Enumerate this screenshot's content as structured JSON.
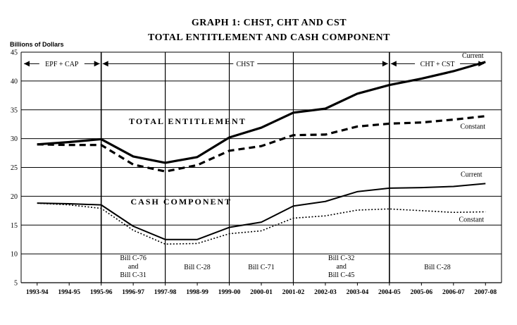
{
  "chart_data": {
    "type": "line",
    "title_line1": "GRAPH 1: CHST, CHT AND CST",
    "title_line2": "TOTAL ENTITLEMENT AND CASH COMPONENT",
    "ylabel": "Billions of Dollars",
    "ylim": [
      5,
      45
    ],
    "yticks": [
      5,
      10,
      15,
      20,
      25,
      30,
      35,
      40,
      45
    ],
    "categories": [
      "1993-94",
      "1994-95",
      "1995-96",
      "1996-97",
      "1997-98",
      "1998-99",
      "1999-00",
      "2000-01",
      "2001-02",
      "2002-03",
      "2003-04",
      "2004-05",
      "2005-06",
      "2006-07",
      "2007-08"
    ],
    "series": [
      {
        "name": "Current",
        "group": "TOTAL ENTITLEMENT",
        "style": "thick-solid",
        "values": [
          29.0,
          29.4,
          29.9,
          26.9,
          25.8,
          26.8,
          30.2,
          31.9,
          34.5,
          35.2,
          37.8,
          39.3,
          40.4,
          41.7,
          43.3
        ]
      },
      {
        "name": "Constant",
        "group": "TOTAL ENTITLEMENT",
        "style": "thick-dashed",
        "values": [
          29.0,
          28.9,
          28.9,
          25.5,
          24.3,
          25.4,
          27.9,
          28.7,
          30.6,
          30.7,
          32.1,
          32.6,
          32.8,
          33.3,
          33.9
        ]
      },
      {
        "name": "Current",
        "group": "CASH COMPONENT",
        "style": "solid",
        "values": [
          18.8,
          18.7,
          18.5,
          14.8,
          12.5,
          12.5,
          14.6,
          15.5,
          18.3,
          19.1,
          20.8,
          21.4,
          21.5,
          21.7,
          22.2
        ]
      },
      {
        "name": "Constant",
        "group": "CASH COMPONENT",
        "style": "dotted",
        "values": [
          18.8,
          18.5,
          17.9,
          14.1,
          11.7,
          11.8,
          13.5,
          14.0,
          16.2,
          16.6,
          17.6,
          17.8,
          17.5,
          17.2,
          17.3
        ]
      }
    ],
    "section_labels": [
      "TOTAL ENTITLEMENT",
      "CASH COMPONENT"
    ],
    "periods": [
      {
        "label": "EPF + CAP",
        "from": 0,
        "to": 2
      },
      {
        "label": "CHST",
        "from": 2,
        "to": 11
      },
      {
        "label": "CHT + CST",
        "from": 11,
        "to": 14
      }
    ],
    "bill_boundaries": [
      2,
      4,
      6,
      8,
      11
    ],
    "bills": [
      {
        "lines": [
          "Bill C-76",
          "and",
          "Bill C-31"
        ],
        "at": 3
      },
      {
        "lines": [
          "Bill C-28"
        ],
        "at": 5
      },
      {
        "lines": [
          "Bill C-71"
        ],
        "at": 7
      },
      {
        "lines": [
          "Bill C-32",
          "and",
          "Bill C-45"
        ],
        "at": 9.5
      },
      {
        "lines": [
          "Bill C-28"
        ],
        "at": 12.5
      }
    ],
    "grid": {
      "horizontal": true,
      "vertical": "period-boundaries"
    }
  }
}
